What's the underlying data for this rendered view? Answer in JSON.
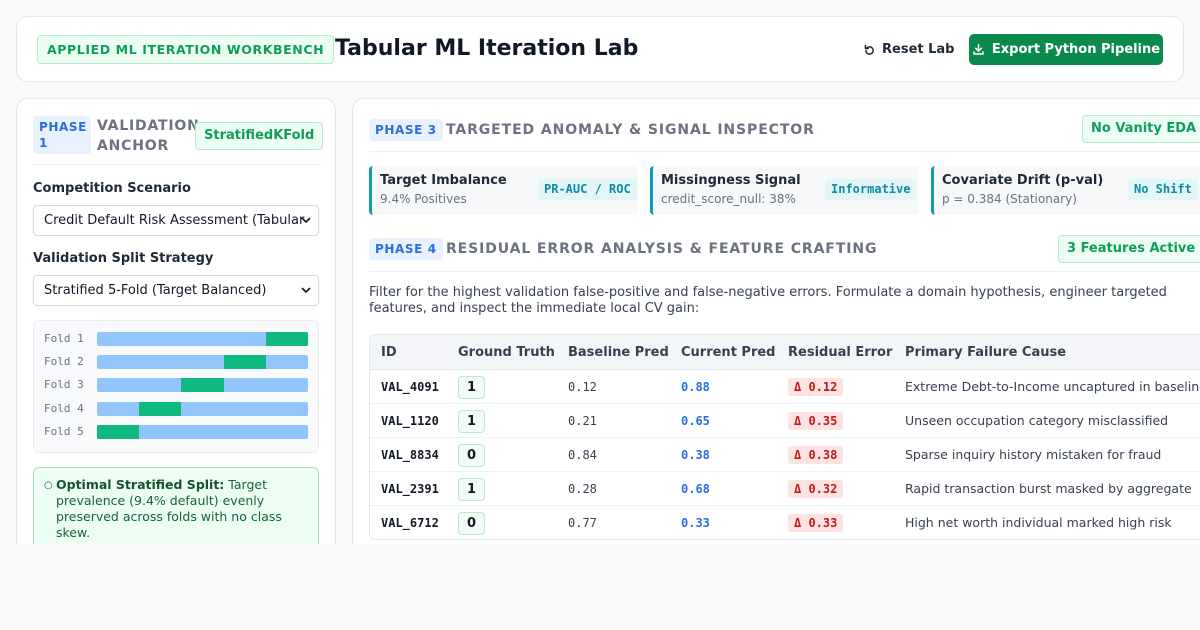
{
  "header": {
    "badge": "APPLIED ML ITERATION WORKBENCH",
    "title": "Tabular ML Iteration Lab",
    "reset_label": "Reset Lab",
    "export_label": "Export Python Pipeline",
    "export_color": "#0b8a4e"
  },
  "phase1": {
    "tag": "PHASE 1",
    "title": "VALIDATION ANCHOR",
    "badge": "StratifiedKFold",
    "scenario_label": "Competition Scenario",
    "scenario_value": "Credit Default Risk Assessment (Tabular",
    "split_label": "Validation Split Strategy",
    "split_value": "Stratified 5-Fold (Target Balanced)",
    "folds": [
      {
        "label": "Fold 1",
        "val_start": 0.8,
        "val_end": 1.0
      },
      {
        "label": "Fold 2",
        "val_start": 0.6,
        "val_end": 0.8
      },
      {
        "label": "Fold 3",
        "val_start": 0.4,
        "val_end": 0.6
      },
      {
        "label": "Fold 4",
        "val_start": 0.2,
        "val_end": 0.4
      },
      {
        "label": "Fold 5",
        "val_start": 0.0,
        "val_end": 0.2
      }
    ],
    "callout_bold": "Optimal Stratified Split:",
    "callout_text": "Target prevalence (9.4% default) evenly preserved across folds with no class skew."
  },
  "phase3": {
    "tag": "PHASE 3",
    "title": "TARGETED ANOMALY & SIGNAL INSPECTOR",
    "badge": "No Vanity EDA",
    "cards": [
      {
        "name": "Target Imbalance",
        "sub": "9.4% Positives",
        "pill": "PR-AUC / ROC"
      },
      {
        "name": "Missingness Signal",
        "sub": "credit_score_null: 38%",
        "pill": "Informative"
      },
      {
        "name": "Covariate Drift (p-val)",
        "sub": "p = 0.384 (Stationary)",
        "pill": "No Shift"
      }
    ]
  },
  "phase4": {
    "tag": "PHASE 4",
    "title": "RESIDUAL ERROR ANALYSIS & FEATURE CRAFTING",
    "badge": "3 Features Active",
    "intro": "Filter for the highest validation false-positive and false-negative errors. Formulate a domain hypothesis, engineer targeted features, and inspect the immediate local CV gain:",
    "columns": [
      "ID",
      "Ground Truth",
      "Baseline Pred",
      "Current Pred",
      "Residual Error",
      "Primary Failure Cause"
    ],
    "rows": [
      {
        "id": "VAL_4091",
        "gt": "1",
        "base": "0.12",
        "cur": "0.88",
        "res": "Δ 0.12",
        "cause": "Extreme Debt-to-Income uncaptured in baseline"
      },
      {
        "id": "VAL_1120",
        "gt": "1",
        "base": "0.21",
        "cur": "0.65",
        "res": "Δ 0.35",
        "cause": "Unseen occupation category misclassified"
      },
      {
        "id": "VAL_8834",
        "gt": "0",
        "base": "0.84",
        "cur": "0.38",
        "res": "Δ 0.38",
        "cause": "Sparse inquiry history mistaken for fraud"
      },
      {
        "id": "VAL_2391",
        "gt": "1",
        "base": "0.28",
        "cur": "0.68",
        "res": "Δ 0.32",
        "cause": "Rapid transaction burst masked by aggregate"
      },
      {
        "id": "VAL_6712",
        "gt": "0",
        "base": "0.77",
        "cur": "0.33",
        "res": "Δ 0.33",
        "cause": "High net worth individual marked high risk"
      }
    ]
  }
}
